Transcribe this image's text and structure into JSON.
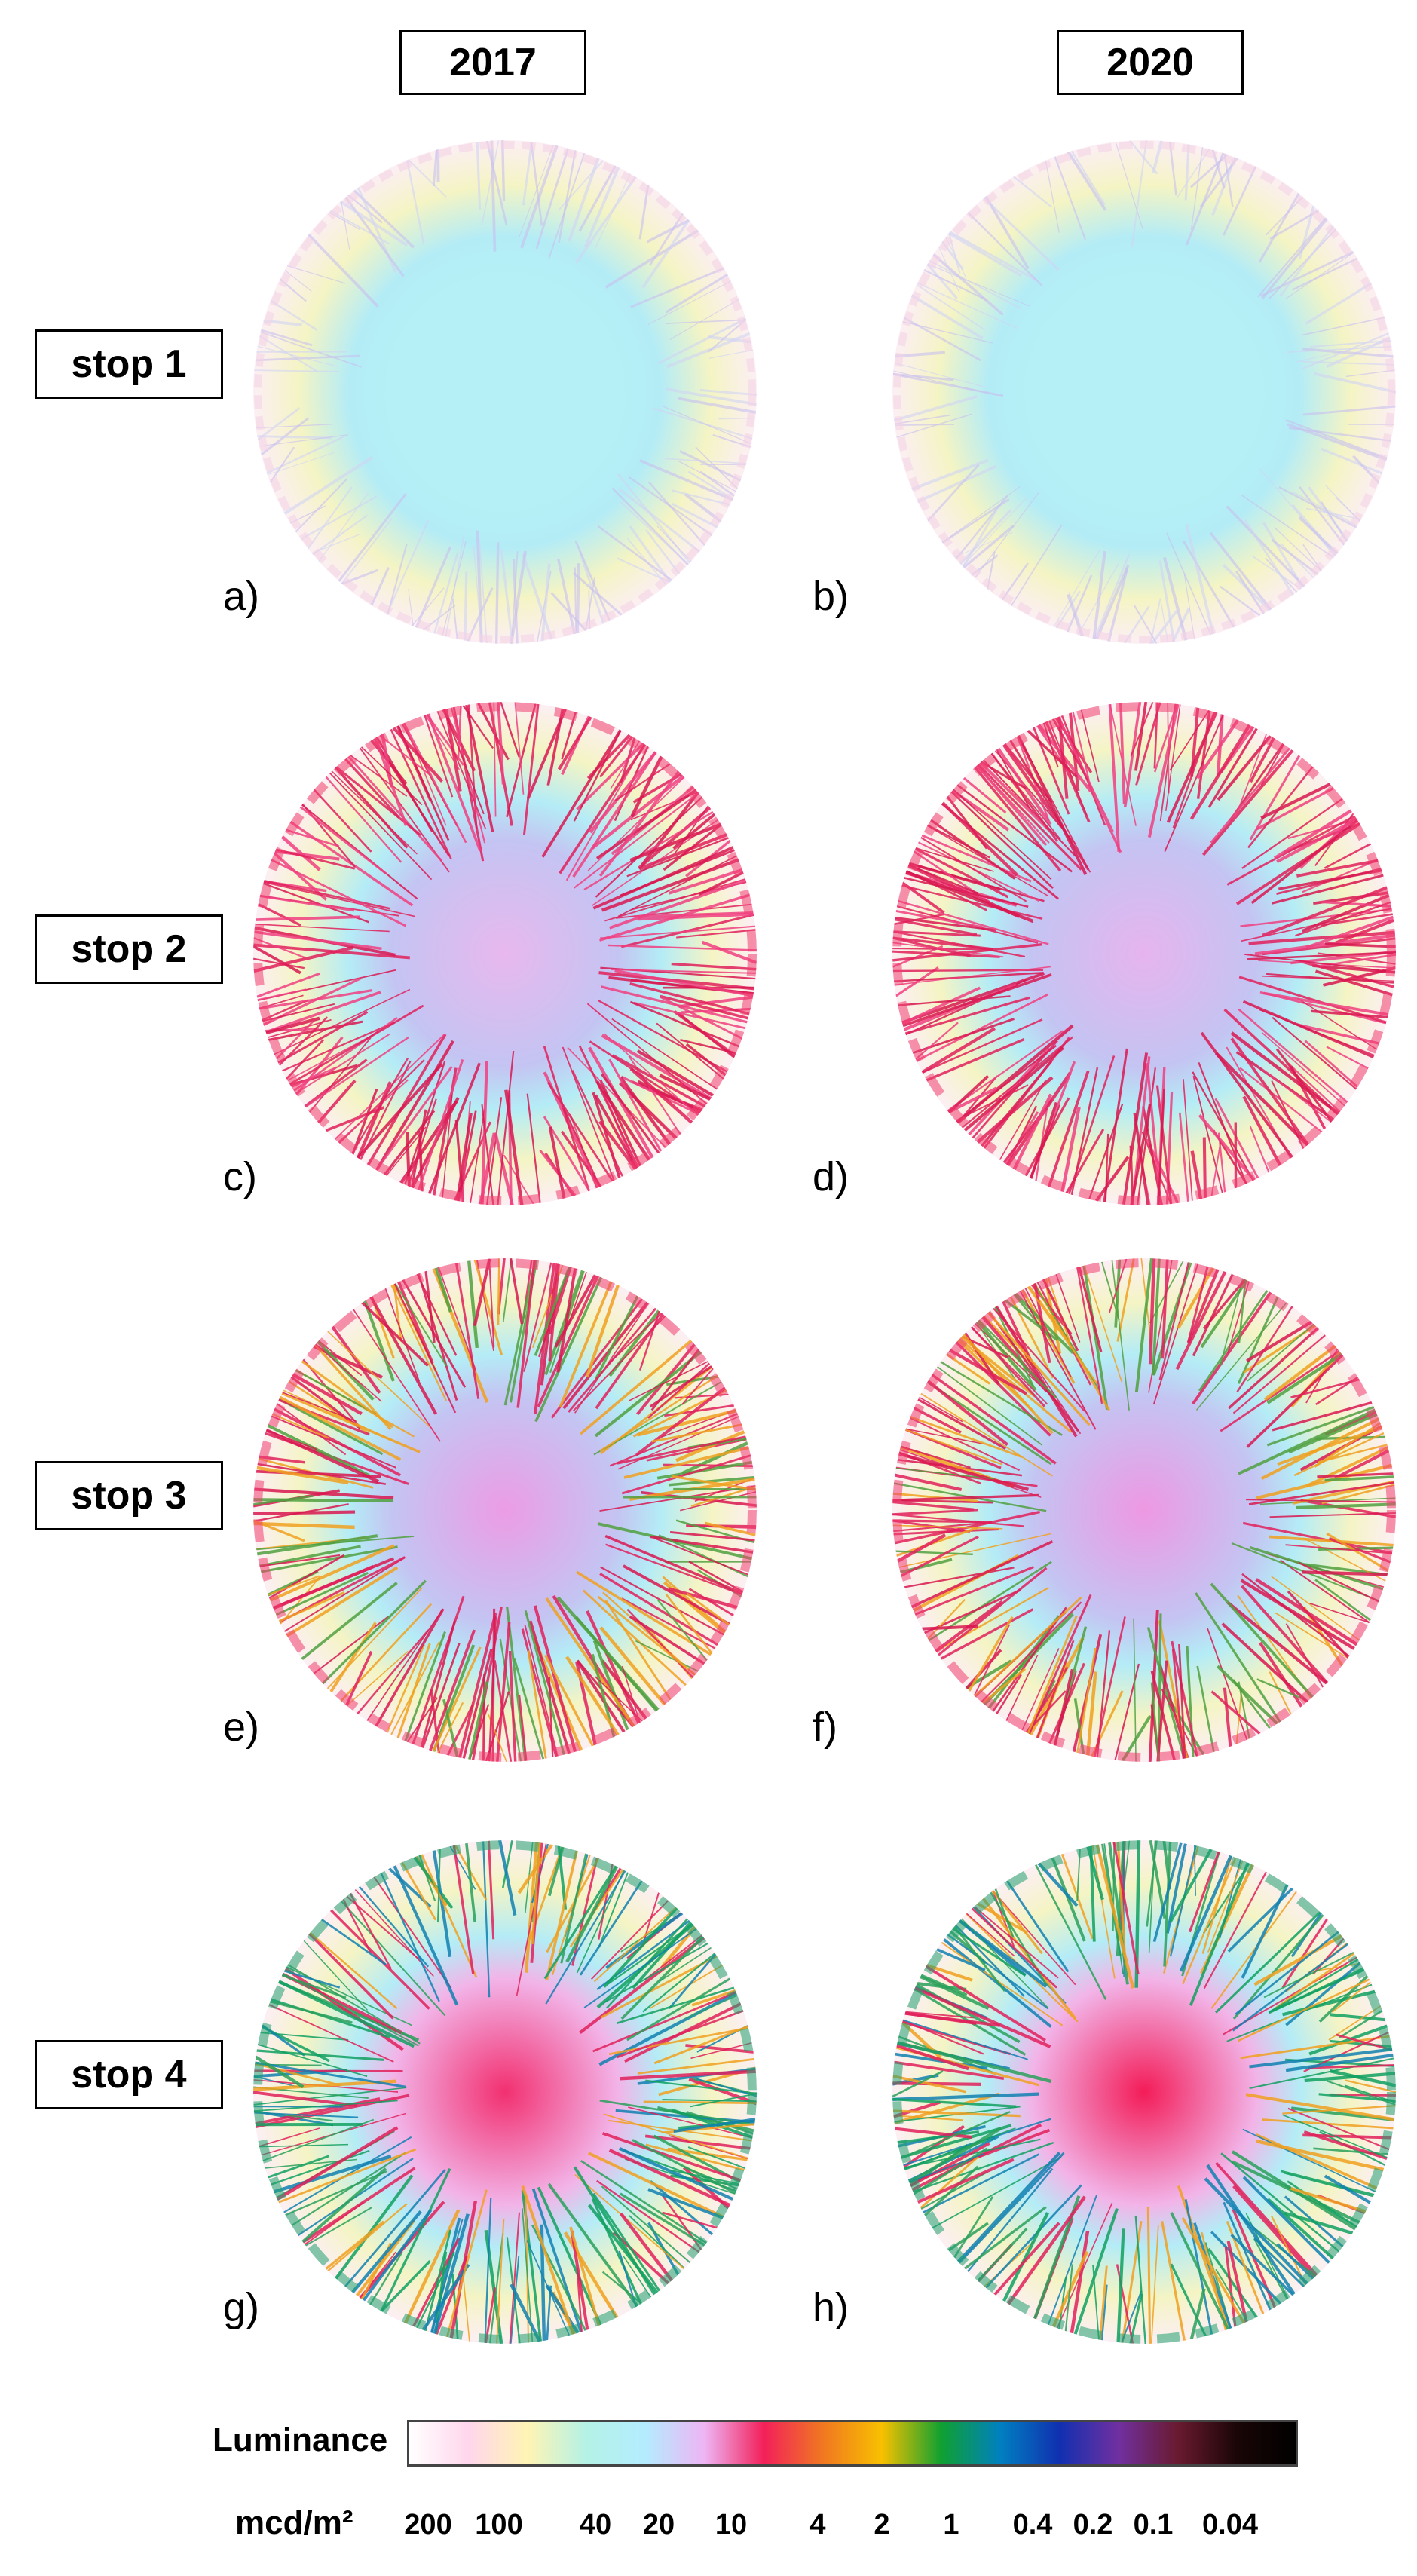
{
  "columns": [
    {
      "label": "2017"
    },
    {
      "label": "2020"
    }
  ],
  "rows": [
    {
      "label": "stop 1"
    },
    {
      "label": "stop 2"
    },
    {
      "label": "stop 3"
    },
    {
      "label": "stop 4"
    }
  ],
  "panels": [
    {
      "label": "a)",
      "column": "2017",
      "row": "stop 1",
      "zenith_color": "#b4f0f6"
    },
    {
      "label": "b)",
      "column": "2020",
      "row": "stop 1",
      "zenith_color": "#b4f0f6"
    },
    {
      "label": "c)",
      "column": "2017",
      "row": "stop 2",
      "zenith_color": "#e8b8ee"
    },
    {
      "label": "d)",
      "column": "2020",
      "row": "stop 2",
      "zenith_color": "#e6b4ee"
    },
    {
      "label": "e)",
      "column": "2017",
      "row": "stop 3",
      "zenith_color": "#ec9ce4"
    },
    {
      "label": "f)",
      "column": "2020",
      "row": "stop 3",
      "zenith_color": "#ee98e2"
    },
    {
      "label": "g)",
      "column": "2017",
      "row": "stop 4",
      "zenith_color": "#f23070"
    },
    {
      "label": "h)",
      "column": "2020",
      "row": "stop 4",
      "zenith_color": "#f31c58"
    }
  ],
  "legend": {
    "title": "Luminance",
    "unit": "mcd/m²",
    "ticks": [
      "200",
      "100",
      "40",
      "20",
      "10",
      "4",
      "2",
      "1",
      "0.4",
      "0.2",
      "0.1",
      "0.04"
    ],
    "colors": [
      "#ffffff",
      "#ffd6ec",
      "#fff4b4",
      "#b4f2e6",
      "#b4ecff",
      "#eeb4f4",
      "#f2205a",
      "#f07820",
      "#f8c000",
      "#10a030",
      "#0080c0",
      "#1030b0",
      "#7030a0",
      "#6a1a30",
      "#1a0606",
      "#000000"
    ]
  }
}
